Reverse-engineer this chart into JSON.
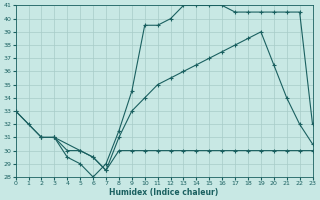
{
  "xlabel": "Humidex (Indice chaleur)",
  "xlim": [
    0,
    23
  ],
  "ylim": [
    28,
    41
  ],
  "yticks": [
    28,
    29,
    30,
    31,
    32,
    33,
    34,
    35,
    36,
    37,
    38,
    39,
    40,
    41
  ],
  "xticks": [
    0,
    1,
    2,
    3,
    4,
    5,
    6,
    7,
    8,
    9,
    10,
    11,
    12,
    13,
    14,
    15,
    16,
    17,
    18,
    19,
    20,
    21,
    22,
    23
  ],
  "bg_color": "#c8e8e4",
  "line_color": "#1a6060",
  "grid_color": "#a8ccc8",
  "line1_x": [
    0,
    1,
    2,
    3,
    4,
    5,
    6,
    7,
    8,
    9,
    10,
    11,
    12,
    13,
    14,
    15,
    16,
    17,
    18,
    19,
    20,
    21,
    22,
    23
  ],
  "line1_y": [
    33,
    32,
    31,
    31,
    29.5,
    29,
    28,
    29,
    31.5,
    34.5,
    39.5,
    39.5,
    40,
    41,
    41,
    41,
    41,
    40.5,
    40.5,
    40.5,
    40.5,
    40.5,
    40.5,
    32
  ],
  "line2_x": [
    0,
    2,
    3,
    5,
    6,
    7,
    8,
    9,
    10,
    11,
    12,
    13,
    14,
    15,
    16,
    17,
    18,
    19,
    20,
    21,
    22,
    23
  ],
  "line2_y": [
    33,
    31,
    31,
    30,
    29.5,
    28.5,
    31,
    33,
    34,
    35,
    35.5,
    36,
    36.5,
    37,
    37.5,
    38,
    38.5,
    39,
    36.5,
    34,
    32,
    30.5
  ],
  "line3_x": [
    2,
    3,
    4,
    5,
    6,
    7,
    8,
    9,
    10,
    11,
    12,
    13,
    14,
    15,
    16,
    17,
    18,
    19,
    20,
    21,
    22,
    23
  ],
  "line3_y": [
    31,
    31,
    30,
    30,
    29.5,
    28.5,
    30,
    30,
    30,
    30,
    30,
    30,
    30,
    30,
    30,
    30,
    30,
    30,
    30,
    30,
    30,
    30
  ]
}
